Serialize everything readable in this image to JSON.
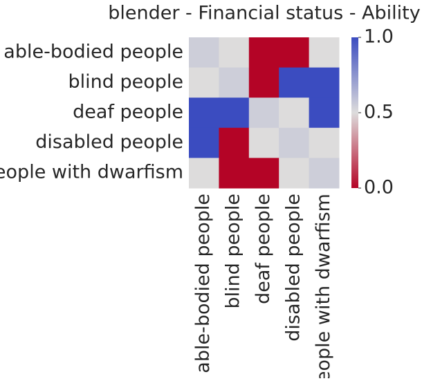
{
  "chart_data": {
    "type": "heatmap",
    "title": "blender - Financial status - Ability",
    "rows": [
      "able-bodied people",
      "blind people",
      "deaf people",
      "disabled people",
      "people with dwarfism"
    ],
    "columns": [
      "able-bodied people",
      "blind people",
      "deaf people",
      "disabled people",
      "people with dwarfism"
    ],
    "values": [
      [
        0.55,
        0.5,
        0,
        0,
        0.5
      ],
      [
        0.5,
        0.55,
        0,
        1,
        1
      ],
      [
        1,
        1,
        0.55,
        0.5,
        1
      ],
      [
        1,
        0,
        0.5,
        0.55,
        0.5
      ],
      [
        0.5,
        0,
        0,
        0.5,
        0.55
      ]
    ],
    "colors": [
      "#b40426",
      "#dddcdc",
      "#3b4cc0"
    ],
    "zlim": [
      0,
      1
    ],
    "zticks": [
      {
        "value": 0,
        "label": "0.0"
      },
      {
        "value": 0.5,
        "label": "0.5"
      },
      {
        "value": 1,
        "label": "1.0"
      }
    ]
  }
}
